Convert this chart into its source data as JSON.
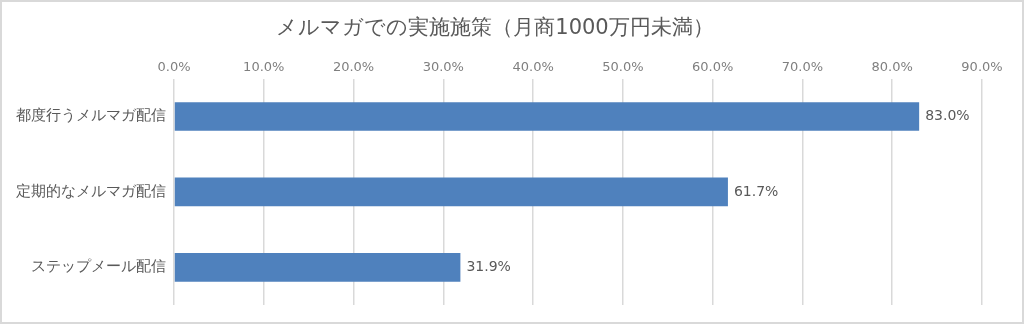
{
  "chart_data": {
    "type": "bar",
    "orientation": "horizontal",
    "title": "メルマガでの実施施策（月商1000万円未満）",
    "categories": [
      "都度行うメルマガ配信",
      "定期的なメルマガ配信",
      "ステップメール配信"
    ],
    "values": [
      83.0,
      61.7,
      31.9
    ],
    "color": "#4f81bd",
    "value_labels": [
      "83.0%",
      "61.7%",
      "31.9%"
    ],
    "xlim": [
      0,
      90
    ],
    "xticks": [
      {
        "value": 0,
        "label": "0.0%"
      },
      {
        "value": 10,
        "label": "10.0%"
      },
      {
        "value": 20,
        "label": "20.0%"
      },
      {
        "value": 30,
        "label": "30.0%"
      },
      {
        "value": 40,
        "label": "40.0%"
      },
      {
        "value": 50,
        "label": "50.0%"
      },
      {
        "value": 60,
        "label": "60.0%"
      },
      {
        "value": 70,
        "label": "70.0%"
      },
      {
        "value": 80,
        "label": "80.0%"
      },
      {
        "value": 90,
        "label": "90.0%"
      }
    ],
    "grid": "x",
    "legend": false
  }
}
